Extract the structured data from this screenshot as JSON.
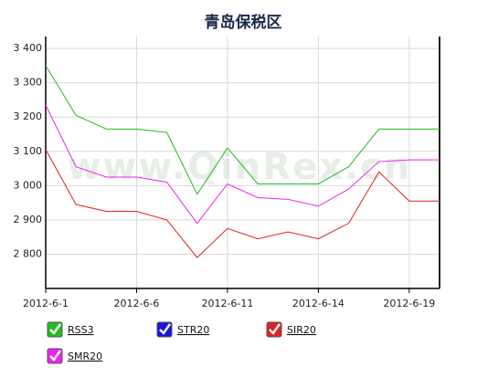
{
  "chart_data": {
    "type": "line",
    "title": "青岛保税区",
    "watermark": "www.QinRex.cn",
    "categories": [
      "2012-6-1",
      null,
      null,
      "2012-6-6",
      null,
      null,
      "2012-6-11",
      null,
      null,
      "2012-6-14",
      null,
      null,
      "2012-6-19",
      null
    ],
    "series": [
      {
        "name": "RSS3",
        "color": "#22bb22",
        "values": [
          3350,
          3205,
          3165,
          3165,
          3155,
          2975,
          3110,
          3005,
          3005,
          3005,
          3055,
          3165,
          3165,
          3165
        ]
      },
      {
        "name": "STR20",
        "color": "#1515dd",
        "values": [
          null,
          null,
          null,
          null,
          null,
          null,
          null,
          null,
          null,
          null,
          null,
          null,
          null,
          null
        ]
      },
      {
        "name": "SIR20",
        "color": "#dd2222",
        "values": [
          3105,
          2945,
          2925,
          2925,
          2900,
          2790,
          2875,
          2845,
          2865,
          2845,
          2890,
          3040,
          2955,
          2955
        ]
      },
      {
        "name": "SMR20",
        "color": "#ee22ee",
        "values": [
          3235,
          3055,
          3025,
          3025,
          3010,
          2890,
          3005,
          2965,
          2960,
          2940,
          2990,
          3070,
          3075,
          3075
        ]
      }
    ],
    "ylim": [
      2700,
      3435
    ],
    "yticks": [
      {
        "value": 2800,
        "label": "2 800"
      },
      {
        "value": 2900,
        "label": "2 900"
      },
      {
        "value": 3000,
        "label": "3 000"
      },
      {
        "value": 3100,
        "label": "3 100"
      },
      {
        "value": 3200,
        "label": "3 200"
      },
      {
        "value": 3300,
        "label": "3 300"
      },
      {
        "value": 3400,
        "label": "3 400"
      }
    ],
    "grid": true
  }
}
